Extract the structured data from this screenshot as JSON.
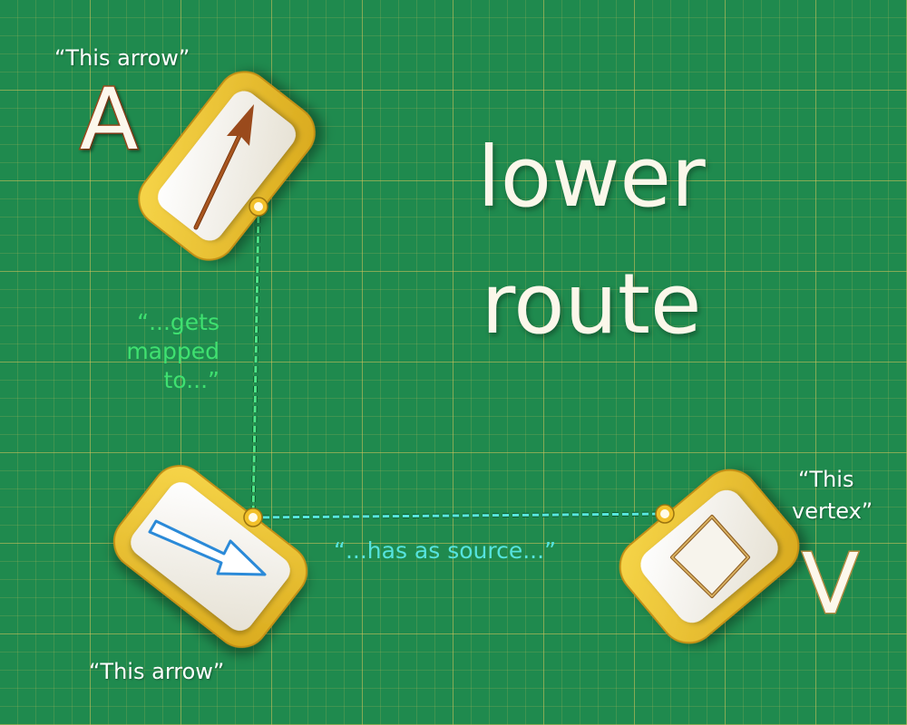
{
  "title": {
    "line1": "lower",
    "line2": "route"
  },
  "top_node": {
    "caption": "“This arrow”",
    "letter": "A",
    "icon": "diagonal-arrow-icon"
  },
  "middle_node": {
    "caption": "“This arrow”",
    "icon": "outlined-arrow-icon"
  },
  "right_node": {
    "caption_line1": "“This",
    "caption_line2": "vertex”",
    "letter": "V",
    "icon": "diamond-icon"
  },
  "edges": {
    "maps_to": {
      "line1": "“...gets",
      "line2": "mapped",
      "line3": "to...”",
      "color": "#3fe070"
    },
    "has_source": {
      "label": "“...has as source...”",
      "color": "#56e3de"
    }
  },
  "colors": {
    "background": "#1f8a4e",
    "grid": "#d6c45c",
    "card_border": "#e8bd2a",
    "card_face": "#f3f0e8",
    "arrow_brown": "#9a4a1c",
    "arrow_blue": "#2b8ad8",
    "diamond_gold": "#c9a050"
  }
}
